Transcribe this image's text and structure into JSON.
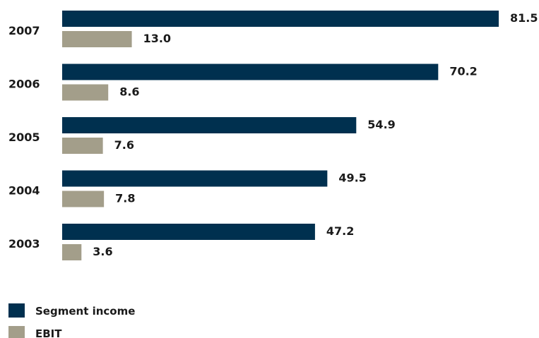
{
  "chart_data": {
    "type": "bar",
    "orientation": "horizontal",
    "categories": [
      "2007",
      "2006",
      "2005",
      "2004",
      "2003"
    ],
    "series": [
      {
        "name": "Segment income",
        "color": "#00304f",
        "values": [
          81.5,
          70.2,
          54.9,
          49.5,
          47.2
        ],
        "labels": [
          "81.5",
          "70.2",
          "54.9",
          "49.5",
          "47.2"
        ]
      },
      {
        "name": "EBIT",
        "color": "#a39e8a",
        "values": [
          13.0,
          8.6,
          7.6,
          7.8,
          3.6
        ],
        "labels": [
          "13.0",
          "8.6",
          "7.6",
          "7.8",
          "3.6"
        ]
      }
    ],
    "xlim": [
      0,
      81.5
    ],
    "grid": false,
    "legend": "bottom-left"
  }
}
